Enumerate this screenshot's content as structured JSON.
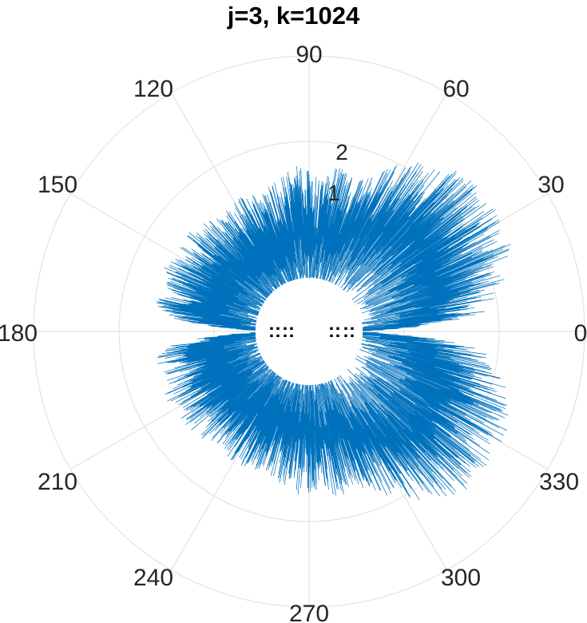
{
  "title": "j=3, k=1024",
  "chart_data": {
    "type": "polar",
    "title": "j=3, k=1024",
    "theta_ticks": [
      "0",
      "30",
      "60",
      "90",
      "120",
      "150",
      "180",
      "210",
      "240",
      "270",
      "300",
      "330"
    ],
    "r_ticks": [
      "1",
      "2"
    ],
    "r_max": 2.9,
    "grid": true,
    "line_color": "#0072BD",
    "series": [
      {
        "description_values": {
          "envelope_theta_deg": [
            0,
            5,
            10,
            15,
            20,
            25,
            30,
            35,
            40,
            45,
            50,
            55,
            60,
            65,
            70,
            75,
            80,
            85,
            90,
            95,
            100,
            105,
            110,
            115,
            120,
            125,
            130,
            135,
            140,
            145,
            150,
            155,
            160,
            165,
            170,
            175,
            180
          ],
          "envelope_r": [
            0.5,
            1.8,
            2.0,
            2.15,
            2.25,
            2.35,
            2.35,
            2.4,
            2.35,
            2.35,
            2.3,
            2.2,
            2.05,
            1.9,
            1.75,
            1.7,
            1.8,
            1.65,
            1.7,
            1.75,
            1.65,
            1.6,
            1.55,
            1.6,
            1.6,
            1.55,
            1.55,
            1.6,
            1.65,
            1.65,
            1.6,
            1.7,
            1.6,
            1.6,
            1.65,
            1.45,
            0.4
          ],
          "inner_hole_r": 0.5
        }
      }
    ],
    "annotations": [
      "::",
      "::",
      "::",
      "::"
    ]
  }
}
